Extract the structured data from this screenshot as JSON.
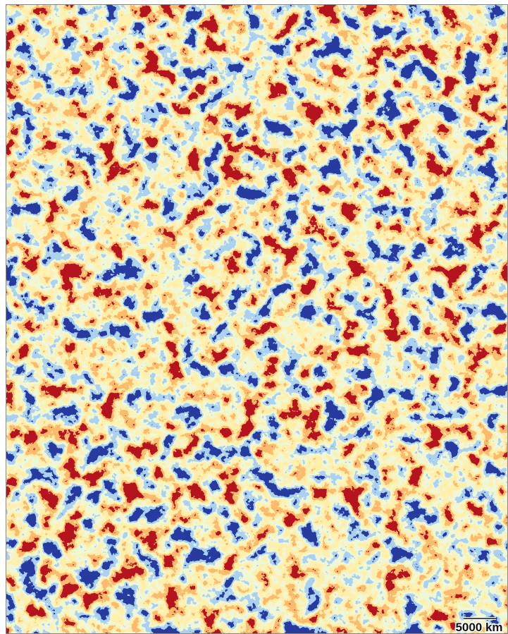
{
  "scale_bar": {
    "label": "5000 km"
  }
}
